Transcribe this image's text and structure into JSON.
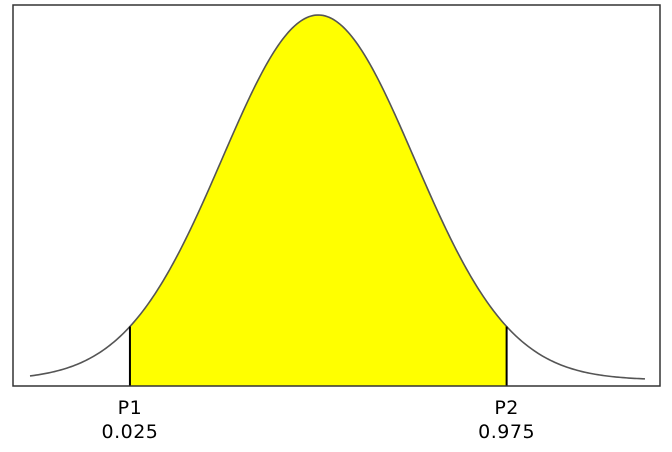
{
  "chart_data": {
    "type": "area",
    "distribution": "normal",
    "title": "",
    "xlabel": "",
    "ylabel": "",
    "x_range": [
      -3.0,
      3.4
    ],
    "mean": 0,
    "sd": 1,
    "shaded_between_quantiles": [
      0.025,
      0.975
    ],
    "shaded_between_z": [
      -1.96,
      1.96
    ],
    "markers": [
      {
        "name": "P1",
        "probability": "0.025",
        "z": -1.96
      },
      {
        "name": "P2",
        "probability": "0.975",
        "z": 1.96
      }
    ],
    "grid": false,
    "legend": "none"
  },
  "colors": {
    "fill": "#ffff00",
    "curve": "#555555",
    "marker_line": "#000000",
    "frame": "#333333",
    "background": "#ffffff"
  }
}
